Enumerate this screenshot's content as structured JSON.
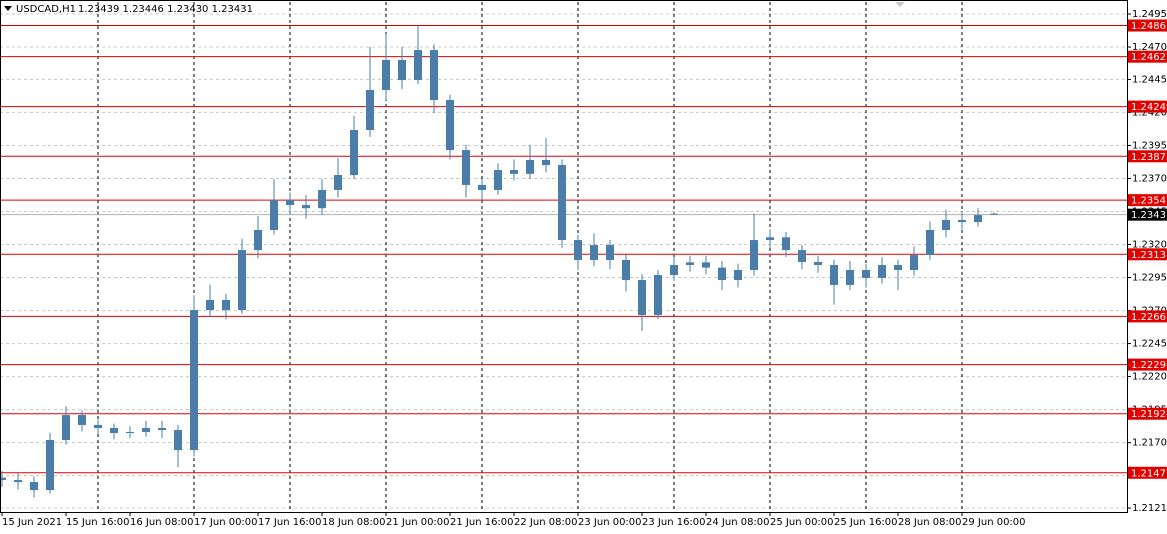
{
  "chart_data": {
    "type": "candlestick",
    "title": "USDCAD,H1",
    "subtitle": "1.23439 1.23446 1.23430 1.23431",
    "categories": [
      "15 Jun 2021",
      null,
      null,
      null,
      "15 Jun 16:00",
      null,
      null,
      null,
      "16 Jun 08:00",
      null,
      null,
      null,
      "17 Jun 00:00",
      null,
      null,
      null,
      "17 Jun 16:00",
      null,
      null,
      null,
      "18 Jun 08:00",
      null,
      null,
      null,
      "21 Jun 00:00",
      null,
      null,
      null,
      "21 Jun 16:00",
      null,
      null,
      null,
      "22 Jun 08:00",
      null,
      null,
      null,
      "23 Jun 00:00",
      null,
      null,
      null,
      "23 Jun 16:00",
      null,
      null,
      null,
      "24 Jun 08:00",
      null,
      null,
      null,
      "25 Jun 00:00",
      null,
      null,
      null,
      "25 Jun 16:00",
      null,
      null,
      null,
      "28 Jun 08:00",
      null,
      null,
      null,
      "29 Jun 00:00",
      null,
      null
    ],
    "open": [
      1.2144,
      1.21422,
      1.21407,
      1.21346,
      1.21725,
      1.21914,
      1.21839,
      1.21816,
      1.21778,
      1.21786,
      1.21816,
      1.21801,
      1.21649,
      1.22709,
      1.22785,
      1.22709,
      1.23163,
      1.23315,
      1.23542,
      1.23504,
      1.2348,
      1.23618,
      1.23731,
      1.24072,
      1.24375,
      1.24602,
      1.2445,
      1.24677,
      1.24299,
      1.2392,
      1.23656,
      1.23618,
      1.23769,
      1.2374,
      1.23845,
      1.23807,
      1.23239,
      1.23088,
      1.23201,
      1.23088,
      1.22936,
      1.22671,
      1.22974,
      1.2305,
      1.2307,
      1.2303,
      1.22936,
      1.23012,
      1.23239,
      1.2326,
      1.23163,
      1.23073,
      1.2305,
      1.22899,
      1.23012,
      1.22952,
      1.2305,
      1.23012,
      1.23126,
      1.23315,
      1.23391,
      1.23375,
      1.23439
    ],
    "high": [
      1.2149,
      1.2148,
      1.2145,
      1.2178,
      1.2198,
      1.2195,
      1.2188,
      1.2185,
      1.2183,
      1.2187,
      1.2187,
      1.2184,
      1.2282,
      1.229,
      1.2283,
      1.2325,
      1.2342,
      1.237,
      1.236,
      1.2358,
      1.237,
      1.2386,
      1.2418,
      1.247,
      1.248,
      1.247,
      1.2486,
      1.2472,
      1.2434,
      1.2396,
      1.237,
      1.2382,
      1.2385,
      1.2396,
      1.2401,
      1.2385,
      1.2328,
      1.2329,
      1.2324,
      1.2313,
      1.2298,
      1.2301,
      1.2311,
      1.2312,
      1.2312,
      1.2308,
      1.2306,
      1.2344,
      1.2332,
      1.233,
      1.232,
      1.2312,
      1.2309,
      1.2308,
      1.2306,
      1.2311,
      1.2309,
      1.2319,
      1.2338,
      1.2347,
      1.2346,
      1.2348,
      1.23446
    ],
    "low": [
      1.2137,
      1.2135,
      1.2129,
      1.2132,
      1.2169,
      1.2179,
      1.2177,
      1.2173,
      1.2174,
      1.2175,
      1.2174,
      1.2152,
      1.216,
      1.2266,
      1.2264,
      1.2268,
      1.231,
      1.2328,
      1.2344,
      1.234,
      1.2343,
      1.2356,
      1.237,
      1.2402,
      1.243,
      1.2438,
      1.2442,
      1.242,
      1.2385,
      1.2356,
      1.2354,
      1.2358,
      1.2369,
      1.237,
      1.2375,
      1.2318,
      1.2301,
      1.2304,
      1.2302,
      1.2285,
      1.2255,
      1.2264,
      1.2293,
      1.23,
      1.2298,
      1.2286,
      1.2288,
      1.2297,
      1.2318,
      1.2311,
      1.2302,
      1.2299,
      1.2275,
      1.2286,
      1.2288,
      1.2291,
      1.2286,
      1.2297,
      1.2309,
      1.2326,
      1.2332,
      1.2334,
      1.2343
    ],
    "close": [
      1.21422,
      1.21407,
      1.21346,
      1.21725,
      1.21914,
      1.21839,
      1.21816,
      1.21778,
      1.21786,
      1.21816,
      1.21801,
      1.21649,
      1.22709,
      1.22785,
      1.22709,
      1.23163,
      1.23315,
      1.23542,
      1.23504,
      1.2348,
      1.23618,
      1.23731,
      1.24072,
      1.24375,
      1.24602,
      1.2445,
      1.24677,
      1.24299,
      1.2392,
      1.23656,
      1.23618,
      1.23769,
      1.2374,
      1.23845,
      1.23807,
      1.23239,
      1.23088,
      1.23201,
      1.23088,
      1.22936,
      1.22671,
      1.22974,
      1.2305,
      1.2307,
      1.2303,
      1.22936,
      1.23012,
      1.23239,
      1.2326,
      1.23163,
      1.23073,
      1.2305,
      1.22899,
      1.23012,
      1.22952,
      1.2305,
      1.23012,
      1.23126,
      1.23315,
      1.23391,
      1.23375,
      1.23428,
      1.23431
    ],
    "color": "#4a7ea8",
    "levels": [
      1.24863,
      1.24627,
      1.24249,
      1.23873,
      1.23541,
      1.23131,
      1.22661,
      1.22296,
      1.21924,
      1.21477
    ],
    "level_color": "#e00000",
    "current_price": 1.23431,
    "ylim": [
      1.2118,
      1.25041
    ],
    "yticks": [
      {
        "value": 1.2495,
        "label": "1.24950"
      },
      {
        "value": 1.247,
        "label": "1.24700"
      },
      1.24455,
      1.24205,
      1.23955,
      1.23705,
      1.23455,
      1.23205,
      1.22955,
      1.22705,
      1.22455,
      1.22205,
      1.21955,
      1.21705,
      1.21455,
      {
        "value": 1.2121,
        "label": "1.21210"
      }
    ],
    "grid": true
  }
}
